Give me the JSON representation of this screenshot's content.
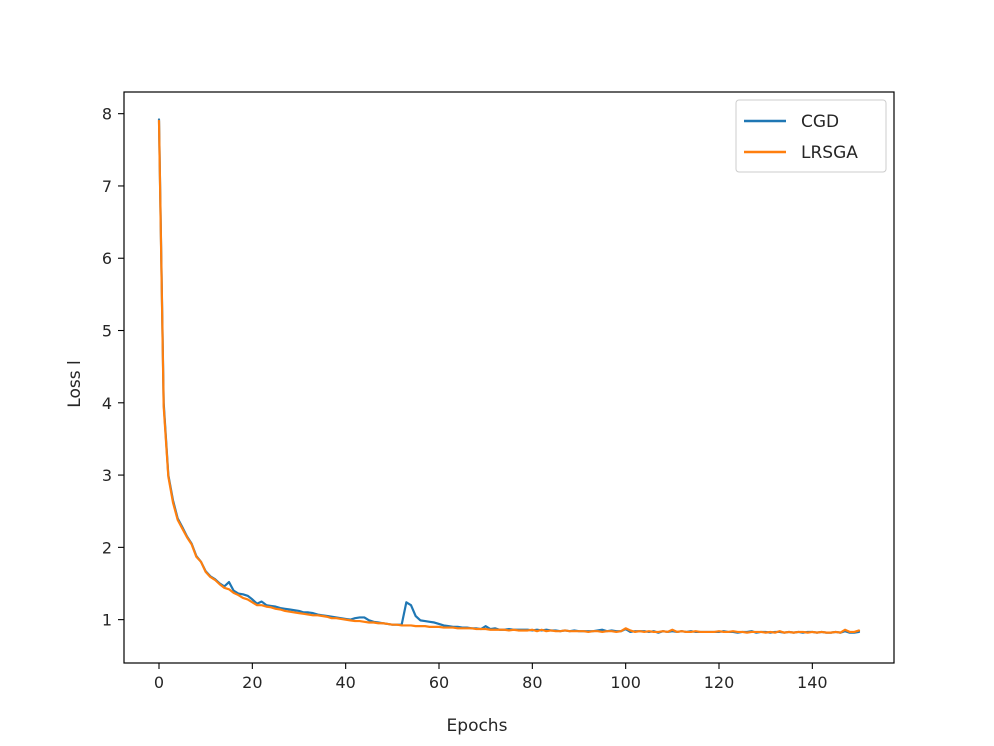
{
  "chart_data": {
    "type": "line",
    "title": "",
    "xlabel": "Epochs",
    "ylabel": "Loss l",
    "xlim": [
      -7.5,
      157.5
    ],
    "ylim": [
      0.4,
      8.3
    ],
    "xticks": [
      0,
      20,
      40,
      60,
      80,
      100,
      120,
      140
    ],
    "xtick_labels": [
      "0",
      "20",
      "40",
      "60",
      "80",
      "100",
      "120",
      "140"
    ],
    "yticks": [
      1,
      2,
      3,
      4,
      5,
      6,
      7,
      8
    ],
    "ytick_labels": [
      "1",
      "2",
      "3",
      "4",
      "5",
      "6",
      "7",
      "8"
    ],
    "grid": false,
    "legend": "top-right",
    "series": [
      {
        "name": "CGD",
        "color": "#1f77b4",
        "points": [
          [
            0,
            7.92
          ],
          [
            1,
            4.0
          ],
          [
            2,
            3.0
          ],
          [
            3,
            2.65
          ],
          [
            4,
            2.4
          ],
          [
            5,
            2.28
          ],
          [
            6,
            2.15
          ],
          [
            7,
            2.05
          ],
          [
            8,
            1.88
          ],
          [
            9,
            1.8
          ],
          [
            10,
            1.67
          ],
          [
            11,
            1.6
          ],
          [
            12,
            1.56
          ],
          [
            13,
            1.5
          ],
          [
            14,
            1.46
          ],
          [
            15,
            1.52
          ],
          [
            16,
            1.4
          ],
          [
            17,
            1.36
          ],
          [
            18,
            1.35
          ],
          [
            19,
            1.33
          ],
          [
            20,
            1.28
          ],
          [
            21,
            1.22
          ],
          [
            22,
            1.25
          ],
          [
            23,
            1.2
          ],
          [
            24,
            1.19
          ],
          [
            25,
            1.18
          ],
          [
            26,
            1.16
          ],
          [
            27,
            1.15
          ],
          [
            28,
            1.14
          ],
          [
            29,
            1.13
          ],
          [
            30,
            1.12
          ],
          [
            31,
            1.1
          ],
          [
            32,
            1.1
          ],
          [
            33,
            1.09
          ],
          [
            34,
            1.07
          ],
          [
            35,
            1.06
          ],
          [
            36,
            1.05
          ],
          [
            37,
            1.04
          ],
          [
            38,
            1.03
          ],
          [
            39,
            1.02
          ],
          [
            40,
            1.01
          ],
          [
            41,
            1.0
          ],
          [
            42,
            1.02
          ],
          [
            43,
            1.03
          ],
          [
            44,
            1.03
          ],
          [
            45,
            0.99
          ],
          [
            46,
            0.97
          ],
          [
            47,
            0.96
          ],
          [
            48,
            0.95
          ],
          [
            49,
            0.94
          ],
          [
            50,
            0.93
          ],
          [
            51,
            0.93
          ],
          [
            52,
            0.93
          ],
          [
            53,
            1.24
          ],
          [
            54,
            1.2
          ],
          [
            55,
            1.05
          ],
          [
            56,
            0.99
          ],
          [
            57,
            0.98
          ],
          [
            58,
            0.97
          ],
          [
            59,
            0.96
          ],
          [
            60,
            0.94
          ],
          [
            61,
            0.92
          ],
          [
            62,
            0.91
          ],
          [
            63,
            0.9
          ],
          [
            64,
            0.9
          ],
          [
            65,
            0.89
          ],
          [
            66,
            0.89
          ],
          [
            67,
            0.88
          ],
          [
            68,
            0.88
          ],
          [
            69,
            0.87
          ],
          [
            70,
            0.91
          ],
          [
            71,
            0.87
          ],
          [
            72,
            0.88
          ],
          [
            73,
            0.86
          ],
          [
            74,
            0.86
          ],
          [
            75,
            0.87
          ],
          [
            76,
            0.86
          ],
          [
            77,
            0.86
          ],
          [
            78,
            0.86
          ],
          [
            79,
            0.86
          ],
          [
            80,
            0.85
          ],
          [
            81,
            0.86
          ],
          [
            82,
            0.85
          ],
          [
            83,
            0.86
          ],
          [
            84,
            0.85
          ],
          [
            85,
            0.85
          ],
          [
            86,
            0.84
          ],
          [
            87,
            0.85
          ],
          [
            88,
            0.84
          ],
          [
            89,
            0.85
          ],
          [
            90,
            0.84
          ],
          [
            91,
            0.84
          ],
          [
            92,
            0.84
          ],
          [
            93,
            0.84
          ],
          [
            94,
            0.85
          ],
          [
            95,
            0.86
          ],
          [
            96,
            0.84
          ],
          [
            97,
            0.85
          ],
          [
            98,
            0.84
          ],
          [
            99,
            0.84
          ],
          [
            100,
            0.87
          ],
          [
            101,
            0.83
          ],
          [
            102,
            0.84
          ],
          [
            103,
            0.84
          ],
          [
            104,
            0.84
          ],
          [
            105,
            0.83
          ],
          [
            106,
            0.84
          ],
          [
            107,
            0.82
          ],
          [
            108,
            0.84
          ],
          [
            109,
            0.83
          ],
          [
            110,
            0.84
          ],
          [
            111,
            0.83
          ],
          [
            112,
            0.84
          ],
          [
            113,
            0.83
          ],
          [
            114,
            0.84
          ],
          [
            115,
            0.83
          ],
          [
            116,
            0.83
          ],
          [
            117,
            0.83
          ],
          [
            118,
            0.83
          ],
          [
            119,
            0.83
          ],
          [
            120,
            0.83
          ],
          [
            121,
            0.84
          ],
          [
            122,
            0.83
          ],
          [
            123,
            0.83
          ],
          [
            124,
            0.82
          ],
          [
            125,
            0.83
          ],
          [
            126,
            0.83
          ],
          [
            127,
            0.84
          ],
          [
            128,
            0.82
          ],
          [
            129,
            0.83
          ],
          [
            130,
            0.83
          ],
          [
            131,
            0.82
          ],
          [
            132,
            0.83
          ],
          [
            133,
            0.83
          ],
          [
            134,
            0.82
          ],
          [
            135,
            0.83
          ],
          [
            136,
            0.82
          ],
          [
            137,
            0.83
          ],
          [
            138,
            0.82
          ],
          [
            139,
            0.83
          ],
          [
            140,
            0.83
          ],
          [
            141,
            0.82
          ],
          [
            142,
            0.83
          ],
          [
            143,
            0.82
          ],
          [
            144,
            0.82
          ],
          [
            145,
            0.83
          ],
          [
            146,
            0.82
          ],
          [
            147,
            0.84
          ],
          [
            148,
            0.82
          ],
          [
            149,
            0.82
          ],
          [
            150,
            0.83
          ]
        ]
      },
      {
        "name": "LRSGA",
        "color": "#ff7f0e",
        "points": [
          [
            0,
            7.9
          ],
          [
            1,
            3.95
          ],
          [
            2,
            2.98
          ],
          [
            3,
            2.62
          ],
          [
            4,
            2.38
          ],
          [
            5,
            2.26
          ],
          [
            6,
            2.14
          ],
          [
            7,
            2.04
          ],
          [
            8,
            1.87
          ],
          [
            9,
            1.8
          ],
          [
            10,
            1.66
          ],
          [
            11,
            1.59
          ],
          [
            12,
            1.55
          ],
          [
            13,
            1.49
          ],
          [
            14,
            1.44
          ],
          [
            15,
            1.42
          ],
          [
            16,
            1.37
          ],
          [
            17,
            1.34
          ],
          [
            18,
            1.3
          ],
          [
            19,
            1.28
          ],
          [
            20,
            1.24
          ],
          [
            21,
            1.2
          ],
          [
            22,
            1.2
          ],
          [
            23,
            1.18
          ],
          [
            24,
            1.17
          ],
          [
            25,
            1.15
          ],
          [
            26,
            1.14
          ],
          [
            27,
            1.12
          ],
          [
            28,
            1.11
          ],
          [
            29,
            1.1
          ],
          [
            30,
            1.09
          ],
          [
            31,
            1.08
          ],
          [
            32,
            1.07
          ],
          [
            33,
            1.06
          ],
          [
            34,
            1.06
          ],
          [
            35,
            1.05
          ],
          [
            36,
            1.04
          ],
          [
            37,
            1.02
          ],
          [
            38,
            1.02
          ],
          [
            39,
            1.01
          ],
          [
            40,
            1.0
          ],
          [
            41,
            0.99
          ],
          [
            42,
            0.98
          ],
          [
            43,
            0.98
          ],
          [
            44,
            0.97
          ],
          [
            45,
            0.96
          ],
          [
            46,
            0.96
          ],
          [
            47,
            0.95
          ],
          [
            48,
            0.95
          ],
          [
            49,
            0.94
          ],
          [
            50,
            0.93
          ],
          [
            51,
            0.93
          ],
          [
            52,
            0.92
          ],
          [
            53,
            0.92
          ],
          [
            54,
            0.92
          ],
          [
            55,
            0.91
          ],
          [
            56,
            0.91
          ],
          [
            57,
            0.91
          ],
          [
            58,
            0.9
          ],
          [
            59,
            0.9
          ],
          [
            60,
            0.9
          ],
          [
            61,
            0.89
          ],
          [
            62,
            0.89
          ],
          [
            63,
            0.89
          ],
          [
            64,
            0.88
          ],
          [
            65,
            0.88
          ],
          [
            66,
            0.88
          ],
          [
            67,
            0.88
          ],
          [
            68,
            0.87
          ],
          [
            69,
            0.87
          ],
          [
            70,
            0.87
          ],
          [
            71,
            0.86
          ],
          [
            72,
            0.86
          ],
          [
            73,
            0.86
          ],
          [
            74,
            0.86
          ],
          [
            75,
            0.85
          ],
          [
            76,
            0.86
          ],
          [
            77,
            0.85
          ],
          [
            78,
            0.85
          ],
          [
            79,
            0.85
          ],
          [
            80,
            0.86
          ],
          [
            81,
            0.84
          ],
          [
            82,
            0.86
          ],
          [
            83,
            0.84
          ],
          [
            84,
            0.85
          ],
          [
            85,
            0.84
          ],
          [
            86,
            0.84
          ],
          [
            87,
            0.85
          ],
          [
            88,
            0.84
          ],
          [
            89,
            0.84
          ],
          [
            90,
            0.84
          ],
          [
            91,
            0.84
          ],
          [
            92,
            0.83
          ],
          [
            93,
            0.84
          ],
          [
            94,
            0.84
          ],
          [
            95,
            0.83
          ],
          [
            96,
            0.84
          ],
          [
            97,
            0.84
          ],
          [
            98,
            0.83
          ],
          [
            99,
            0.84
          ],
          [
            100,
            0.88
          ],
          [
            101,
            0.85
          ],
          [
            102,
            0.83
          ],
          [
            103,
            0.84
          ],
          [
            104,
            0.83
          ],
          [
            105,
            0.84
          ],
          [
            106,
            0.83
          ],
          [
            107,
            0.83
          ],
          [
            108,
            0.84
          ],
          [
            109,
            0.83
          ],
          [
            110,
            0.86
          ],
          [
            111,
            0.83
          ],
          [
            112,
            0.84
          ],
          [
            113,
            0.83
          ],
          [
            114,
            0.83
          ],
          [
            115,
            0.84
          ],
          [
            116,
            0.83
          ],
          [
            117,
            0.83
          ],
          [
            118,
            0.83
          ],
          [
            119,
            0.83
          ],
          [
            120,
            0.84
          ],
          [
            121,
            0.83
          ],
          [
            122,
            0.83
          ],
          [
            123,
            0.84
          ],
          [
            124,
            0.83
          ],
          [
            125,
            0.83
          ],
          [
            126,
            0.82
          ],
          [
            127,
            0.83
          ],
          [
            128,
            0.83
          ],
          [
            129,
            0.83
          ],
          [
            130,
            0.82
          ],
          [
            131,
            0.83
          ],
          [
            132,
            0.82
          ],
          [
            133,
            0.84
          ],
          [
            134,
            0.82
          ],
          [
            135,
            0.83
          ],
          [
            136,
            0.82
          ],
          [
            137,
            0.83
          ],
          [
            138,
            0.83
          ],
          [
            139,
            0.82
          ],
          [
            140,
            0.83
          ],
          [
            141,
            0.82
          ],
          [
            142,
            0.83
          ],
          [
            143,
            0.82
          ],
          [
            144,
            0.82
          ],
          [
            145,
            0.83
          ],
          [
            146,
            0.82
          ],
          [
            147,
            0.86
          ],
          [
            148,
            0.83
          ],
          [
            149,
            0.83
          ],
          [
            150,
            0.85
          ]
        ]
      }
    ]
  }
}
